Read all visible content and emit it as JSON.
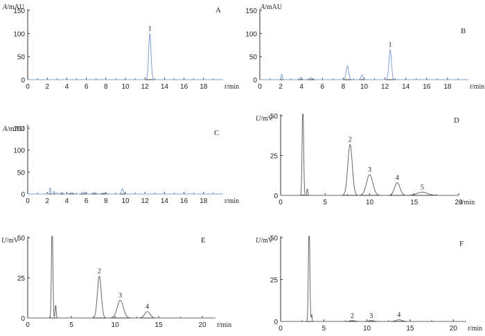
{
  "chart_data": [
    {
      "panel": "A",
      "type": "line",
      "unit_y": "A/mAU",
      "xlabel": "t/min",
      "xlim": [
        0,
        20
      ],
      "ylim": [
        0,
        150
      ],
      "xticks": [
        0,
        2,
        4,
        6,
        8,
        10,
        12,
        14,
        16,
        18
      ],
      "yticks": [
        0,
        50,
        100,
        150
      ],
      "baseline": 0,
      "color": "#7f9fd6",
      "peaks": [
        {
          "t": 12.5,
          "h": 100,
          "w": 0.12,
          "label": "1"
        }
      ]
    },
    {
      "panel": "B",
      "type": "line",
      "unit_y": "A/mAU",
      "xlabel": "t/min",
      "xlim": [
        0,
        20
      ],
      "ylim": [
        0,
        150
      ],
      "xticks": [
        0,
        2,
        4,
        6,
        8,
        10,
        12,
        14,
        16,
        18
      ],
      "yticks": [
        0,
        50,
        100,
        150
      ],
      "baseline": 0,
      "color": "#7f9fd6",
      "peaks": [
        {
          "t": 2.1,
          "h": 12,
          "w": 0.06
        },
        {
          "t": 3.9,
          "h": 5,
          "w": 0.1
        },
        {
          "t": 4.9,
          "h": 4,
          "w": 0.15
        },
        {
          "t": 8.4,
          "h": 30,
          "w": 0.12
        },
        {
          "t": 9.8,
          "h": 10,
          "w": 0.1
        },
        {
          "t": 12.5,
          "h": 65,
          "w": 0.12,
          "label": "1"
        }
      ]
    },
    {
      "panel": "C",
      "type": "line",
      "unit_y": "A/mAU",
      "xlabel": "t/min",
      "xlim": [
        0,
        20
      ],
      "ylim": [
        0,
        150
      ],
      "xticks": [
        0,
        2,
        4,
        6,
        8,
        10,
        12,
        14,
        16,
        18
      ],
      "yticks": [
        0,
        50,
        100,
        150
      ],
      "baseline": 0,
      "color": "#7f9fd6",
      "peaks": [
        {
          "t": 2.3,
          "h": 14,
          "w": 0.05
        },
        {
          "t": 2.7,
          "h": 6,
          "w": 0.05
        },
        {
          "t": 3.5,
          "h": 4,
          "w": 0.1
        },
        {
          "t": 4.5,
          "h": 3,
          "w": 0.15
        },
        {
          "t": 5.7,
          "h": 4,
          "w": 0.15
        },
        {
          "t": 6.8,
          "h": 3,
          "w": 0.15
        },
        {
          "t": 7.8,
          "h": 2,
          "w": 0.2
        },
        {
          "t": 9.7,
          "h": 12,
          "w": 0.1
        }
      ]
    },
    {
      "panel": "D",
      "type": "line",
      "unit_y": "U/mV",
      "xlabel": "t/min",
      "xlim": [
        0,
        20
      ],
      "ylim": [
        0,
        50
      ],
      "xticks": [
        0,
        5,
        10,
        15,
        20
      ],
      "yticks": [
        0,
        25,
        50
      ],
      "baseline": 0,
      "color": "#666666",
      "peaks": [
        {
          "t": 2.5,
          "h": 60,
          "w": 0.08
        },
        {
          "t": 3.0,
          "h": 4,
          "w": 0.06
        },
        {
          "t": 7.8,
          "h": 32,
          "w": 0.25,
          "label": "2"
        },
        {
          "t": 10.0,
          "h": 13,
          "w": 0.35,
          "label": "3"
        },
        {
          "t": 13.1,
          "h": 8,
          "w": 0.3,
          "label": "4"
        },
        {
          "t": 15.9,
          "h": 2,
          "w": 0.6,
          "label": "5"
        }
      ]
    },
    {
      "panel": "E",
      "type": "line",
      "unit_y": "U/mV",
      "xlabel": "t/min",
      "xlim": [
        0,
        21.5
      ],
      "ylim": [
        0,
        50
      ],
      "xticks": [
        0,
        5,
        10,
        15,
        20
      ],
      "yticks": [
        0,
        25,
        50
      ],
      "baseline": 0,
      "color": "#666666",
      "peaks": [
        {
          "t": 2.8,
          "h": 60,
          "w": 0.08
        },
        {
          "t": 3.2,
          "h": 8,
          "w": 0.06
        },
        {
          "t": 8.2,
          "h": 26,
          "w": 0.22,
          "label": "2"
        },
        {
          "t": 10.6,
          "h": 11,
          "w": 0.35,
          "label": "3"
        },
        {
          "t": 13.7,
          "h": 4,
          "w": 0.3,
          "label": "4"
        }
      ]
    },
    {
      "panel": "F",
      "type": "line",
      "unit_y": "U/mV",
      "xlabel": "t/min",
      "xlim": [
        0,
        21.5
      ],
      "ylim": [
        0,
        50
      ],
      "xticks": [
        0,
        5,
        10,
        15,
        20
      ],
      "yticks": [
        0,
        25,
        50
      ],
      "baseline": 0,
      "color": "#666666",
      "peaks": [
        {
          "t": 3.3,
          "h": 60,
          "w": 0.08
        },
        {
          "t": 3.6,
          "h": 4,
          "w": 0.05
        },
        {
          "t": 8.3,
          "h": 0.5,
          "w": 0.3,
          "label": "2"
        },
        {
          "t": 10.5,
          "h": 0.5,
          "w": 0.3,
          "label": "3"
        },
        {
          "t": 13.7,
          "h": 1,
          "w": 0.35,
          "label": "4"
        }
      ]
    }
  ]
}
